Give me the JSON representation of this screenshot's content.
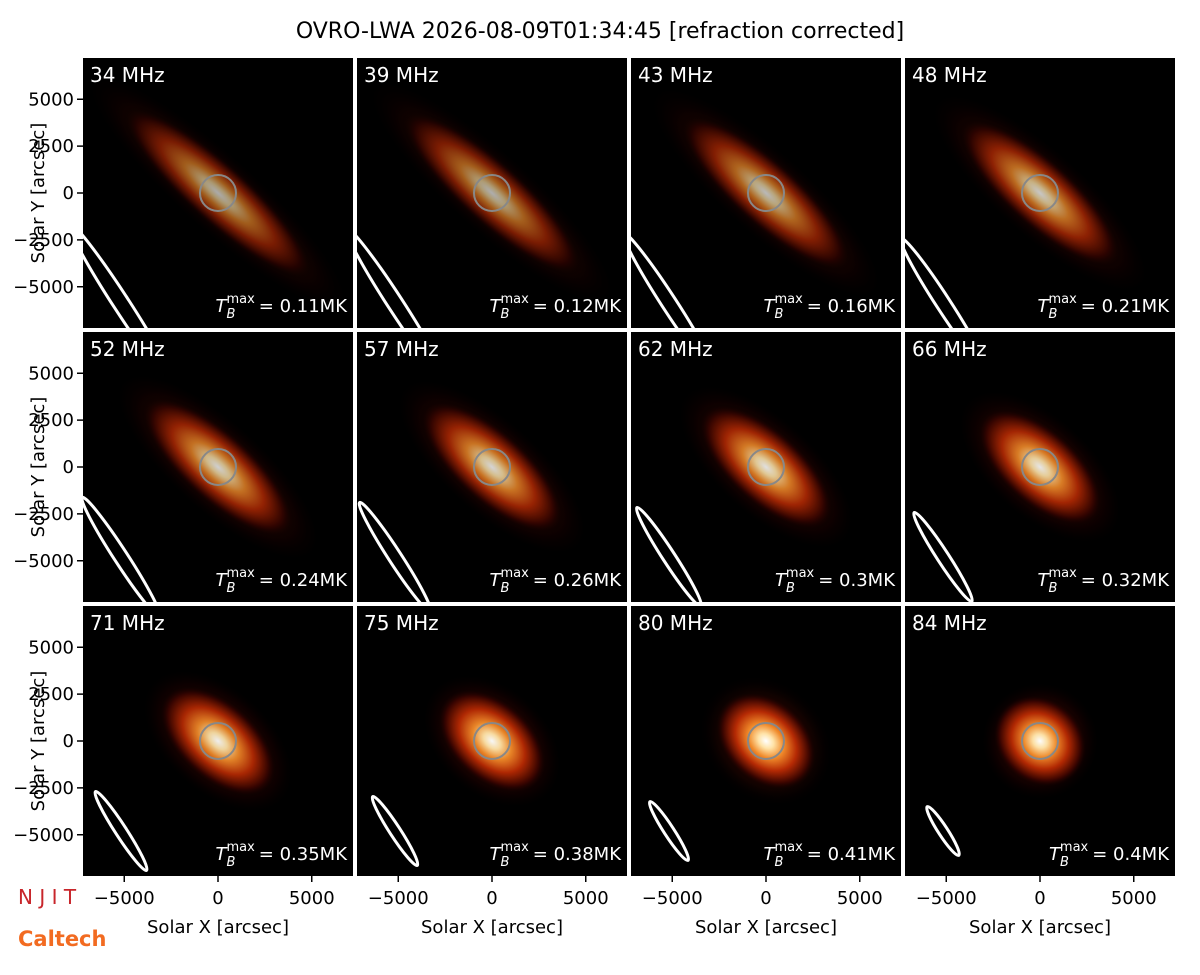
{
  "chart_data": {
    "type": "image",
    "title": "OVRO-LWA 2026-08-09T01:34:45 [refraction corrected]",
    "xlabel": "Solar X [arcsec]",
    "ylabel": "Solar Y [arcsec]",
    "xlim": [
      -7200,
      7200
    ],
    "ylim": [
      -7200,
      7200
    ],
    "xticks": [
      {
        "value": -5000,
        "label": "−5000"
      },
      0,
      5000
    ],
    "yticks": [
      {
        "value": -5000,
        "label": "−5000"
      },
      {
        "value": -2500,
        "label": "−2500"
      },
      0,
      2500,
      5000
    ],
    "tb_symbol": "T",
    "tb_sub": "B",
    "tb_sup": "max",
    "panels": [
      {
        "label": "34 MHz",
        "tb_max": 0.11,
        "tb_label": "= 0.11MK"
      },
      {
        "label": "39 MHz",
        "tb_max": 0.12,
        "tb_label": "= 0.12MK"
      },
      {
        "label": "43 MHz",
        "tb_max": 0.16,
        "tb_label": "= 0.16MK"
      },
      {
        "label": "48 MHz",
        "tb_max": 0.21,
        "tb_label": "= 0.21MK"
      },
      {
        "label": "52 MHz",
        "tb_max": 0.24,
        "tb_label": "= 0.24MK"
      },
      {
        "label": "57 MHz",
        "tb_max": 0.26,
        "tb_label": "= 0.26MK"
      },
      {
        "label": "62 MHz",
        "tb_max": 0.3,
        "tb_label": "= 0.3MK"
      },
      {
        "label": "66 MHz",
        "tb_max": 0.32,
        "tb_label": "= 0.32MK"
      },
      {
        "label": "71 MHz",
        "tb_max": 0.35,
        "tb_label": "= 0.35MK"
      },
      {
        "label": "75 MHz",
        "tb_max": 0.38,
        "tb_label": "= 0.38MK"
      },
      {
        "label": "80 MHz",
        "tb_max": 0.41,
        "tb_label": "= 0.41MK"
      },
      {
        "label": "84 MHz",
        "tb_max": 0.4,
        "tb_label": "= 0.4MK"
      }
    ],
    "logos": [
      "N J I T",
      "Caltech"
    ]
  }
}
